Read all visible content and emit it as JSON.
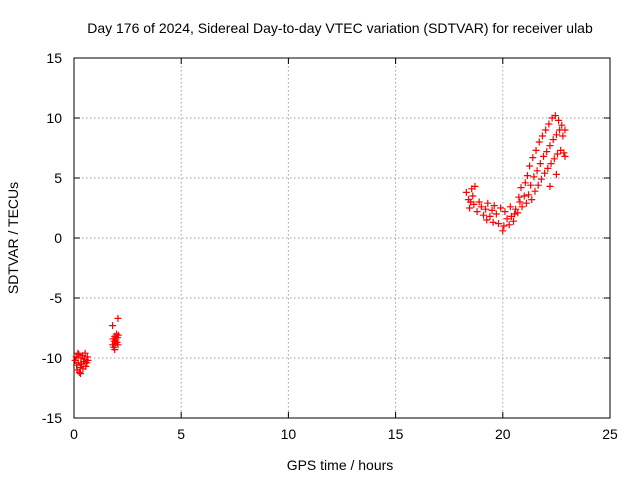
{
  "chart_data": {
    "type": "scatter",
    "title": "Day 176 of 2024, Sidereal Day-to-day VTEC variation (SDTVAR) for receiver ulab",
    "xlabel": "GPS time / hours",
    "ylabel": "SDTVAR / TECUs",
    "xlim": [
      0,
      25
    ],
    "ylim": [
      -15,
      15
    ],
    "xticks": [
      0,
      5,
      10,
      15,
      20,
      25
    ],
    "yticks": [
      -15,
      -10,
      -5,
      0,
      5,
      10,
      15
    ],
    "grid": true,
    "marker": "plus",
    "color": "#ff0000",
    "series": [
      {
        "name": "SDTVAR",
        "points": [
          [
            0.05,
            -10.2
          ],
          [
            0.1,
            -9.9
          ],
          [
            0.12,
            -10.6
          ],
          [
            0.15,
            -11.0
          ],
          [
            0.2,
            -10.4
          ],
          [
            0.22,
            -9.7
          ],
          [
            0.25,
            -11.2
          ],
          [
            0.3,
            -10.8
          ],
          [
            0.32,
            -10.0
          ],
          [
            0.35,
            -10.5
          ],
          [
            0.4,
            -9.8
          ],
          [
            0.42,
            -10.9
          ],
          [
            0.45,
            -10.3
          ],
          [
            0.5,
            -10.1
          ],
          [
            0.52,
            -9.6
          ],
          [
            0.55,
            -10.7
          ],
          [
            0.6,
            -10.4
          ],
          [
            0.62,
            -9.9
          ],
          [
            0.65,
            -10.2
          ],
          [
            0.3,
            -11.3
          ],
          [
            0.18,
            -9.6
          ],
          [
            1.8,
            -8.9
          ],
          [
            1.82,
            -8.4
          ],
          [
            1.85,
            -9.1
          ],
          [
            1.88,
            -8.6
          ],
          [
            1.9,
            -8.2
          ],
          [
            1.92,
            -8.8
          ],
          [
            1.95,
            -8.5
          ],
          [
            1.98,
            -8.0
          ],
          [
            2.0,
            -8.7
          ],
          [
            2.02,
            -8.3
          ],
          [
            2.05,
            -8.9
          ],
          [
            2.07,
            -8.1
          ],
          [
            1.8,
            -7.3
          ],
          [
            2.05,
            -6.7
          ],
          [
            1.9,
            -9.3
          ],
          [
            18.3,
            3.8
          ],
          [
            18.4,
            3.2
          ],
          [
            18.45,
            2.5
          ],
          [
            18.5,
            3.0
          ],
          [
            18.55,
            4.1
          ],
          [
            18.6,
            3.5
          ],
          [
            18.65,
            2.8
          ],
          [
            18.7,
            4.3
          ],
          [
            18.8,
            2.2
          ],
          [
            18.9,
            3.0
          ],
          [
            19.0,
            2.6
          ],
          [
            19.1,
            1.9
          ],
          [
            19.2,
            2.4
          ],
          [
            19.25,
            1.5
          ],
          [
            19.3,
            2.9
          ],
          [
            19.4,
            1.8
          ],
          [
            19.5,
            2.3
          ],
          [
            19.55,
            1.3
          ],
          [
            19.6,
            2.7
          ],
          [
            19.7,
            2.0
          ],
          [
            19.8,
            1.2
          ],
          [
            19.9,
            2.5
          ],
          [
            20.0,
            0.6
          ],
          [
            20.05,
            1.0
          ],
          [
            20.1,
            2.2
          ],
          [
            20.2,
            1.6
          ],
          [
            20.3,
            1.1
          ],
          [
            20.35,
            2.6
          ],
          [
            20.4,
            1.8
          ],
          [
            20.5,
            1.4
          ],
          [
            20.55,
            2.0
          ],
          [
            20.6,
            2.4
          ],
          [
            20.7,
            2.1
          ],
          [
            20.75,
            3.4
          ],
          [
            20.8,
            3.0
          ],
          [
            20.85,
            4.2
          ],
          [
            20.9,
            2.6
          ],
          [
            21.0,
            3.5
          ],
          [
            21.05,
            4.6
          ],
          [
            21.1,
            2.9
          ],
          [
            21.15,
            5.2
          ],
          [
            21.2,
            3.6
          ],
          [
            21.25,
            6.0
          ],
          [
            21.3,
            4.4
          ],
          [
            21.35,
            3.2
          ],
          [
            21.4,
            6.7
          ],
          [
            21.45,
            5.1
          ],
          [
            21.5,
            3.9
          ],
          [
            21.55,
            7.3
          ],
          [
            21.6,
            5.6
          ],
          [
            21.65,
            4.4
          ],
          [
            21.7,
            8.0
          ],
          [
            21.75,
            6.2
          ],
          [
            21.8,
            4.9
          ],
          [
            21.85,
            8.5
          ],
          [
            21.9,
            6.8
          ],
          [
            21.95,
            5.4
          ],
          [
            22.0,
            9.0
          ],
          [
            22.05,
            7.2
          ],
          [
            22.1,
            5.8
          ],
          [
            22.15,
            9.5
          ],
          [
            22.2,
            7.7
          ],
          [
            22.25,
            6.2
          ],
          [
            22.3,
            10.0
          ],
          [
            22.35,
            8.2
          ],
          [
            22.4,
            6.6
          ],
          [
            22.45,
            10.2
          ],
          [
            22.5,
            8.6
          ],
          [
            22.55,
            7.0
          ],
          [
            22.6,
            9.8
          ],
          [
            22.65,
            9.0
          ],
          [
            22.7,
            7.3
          ],
          [
            22.75,
            9.4
          ],
          [
            22.8,
            8.5
          ],
          [
            22.85,
            7.1
          ],
          [
            22.9,
            9.0
          ],
          [
            22.9,
            6.8
          ],
          [
            22.5,
            5.3
          ],
          [
            22.2,
            4.3
          ]
        ]
      }
    ]
  }
}
